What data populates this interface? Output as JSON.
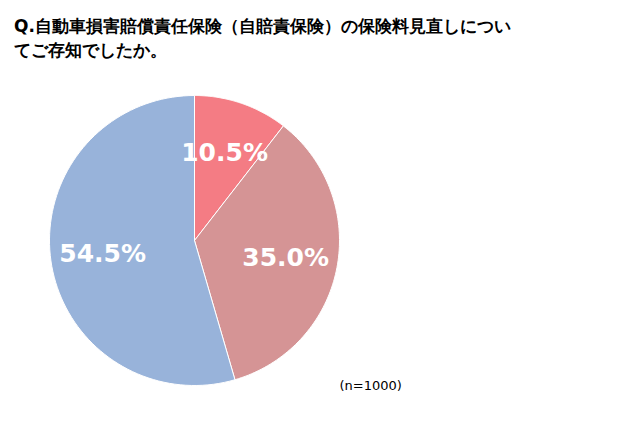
{
  "chart_data": {
    "type": "pie",
    "title": "Q.自動車損害賠償責任保険（自賠責保険）の保険料見直しについてご存知でしたか。",
    "values": [
      10.5,
      35.0,
      54.5
    ],
    "value_labels": [
      "10.5%",
      "35.0%",
      "54.5%"
    ],
    "colors": [
      "#f47c84",
      "#d59495",
      "#98b3da"
    ],
    "data_labels": true,
    "annotations": [
      "(n=1000)"
    ]
  }
}
